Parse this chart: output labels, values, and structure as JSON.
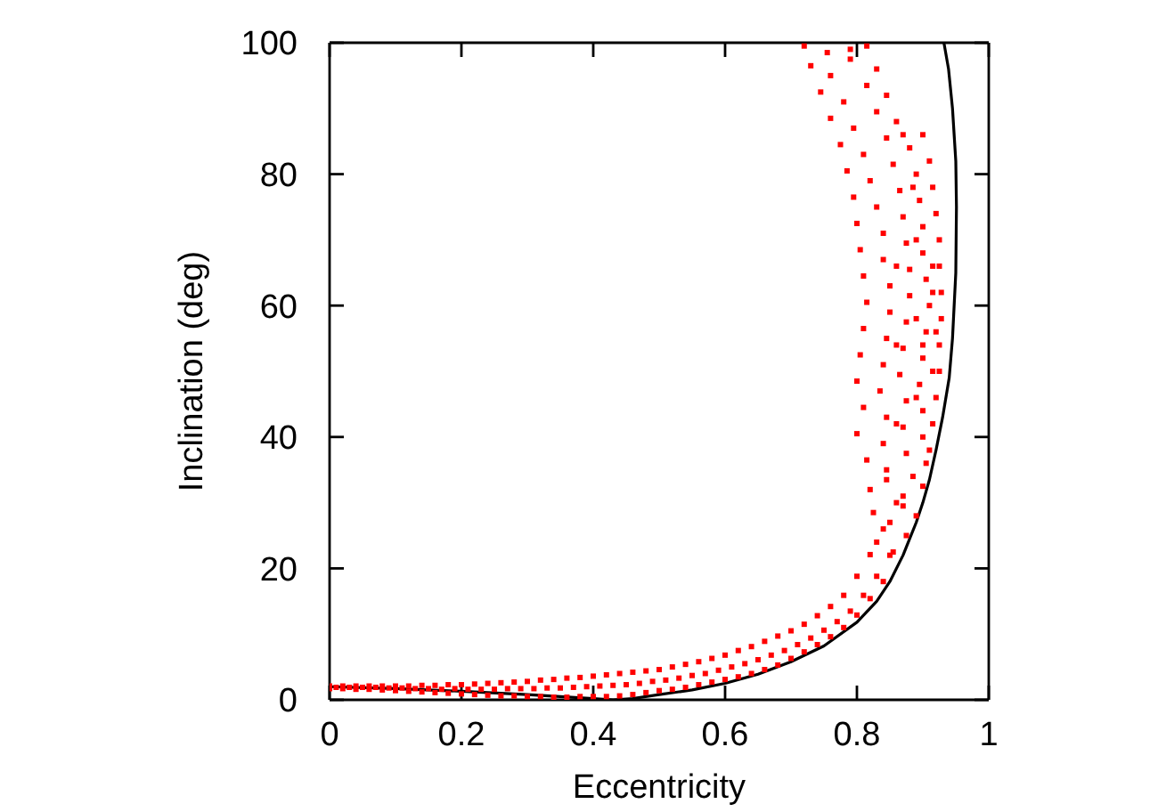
{
  "chart_data": {
    "type": "scatter",
    "xlabel": "Eccentricity",
    "ylabel": "Inclination (deg)",
    "xlim": [
      0,
      1
    ],
    "ylim": [
      0,
      100
    ],
    "xticks": [
      0,
      0.2,
      0.4,
      0.6,
      0.8,
      1
    ],
    "yticks": [
      0,
      20,
      40,
      60,
      80,
      100
    ],
    "marker": "square",
    "series": [
      {
        "color": "#ff0000",
        "x": [
          0,
          0.01,
          0,
          0.02,
          0.03,
          0.02,
          0.04,
          0.05,
          0.04,
          0.06,
          0.07,
          0.06,
          0.08,
          0.09,
          0.08,
          0.1,
          0.11,
          0.1,
          0.12,
          0.13,
          0.12,
          0.14,
          0.15,
          0.14,
          0.16,
          0.17,
          0.16,
          0.18,
          0.19,
          0.18,
          0.2,
          0.21,
          0.2,
          0.22,
          0.23,
          0.22,
          0.24,
          0.25,
          0.24,
          0.26,
          0.27,
          0.26,
          0.28,
          0.29,
          0.28,
          0.3,
          0.31,
          0.3,
          0.32,
          0.33,
          0.32,
          0.34,
          0.35,
          0.34,
          0.36,
          0.37,
          0.36,
          0.38,
          0.39,
          0.38,
          0.4,
          0.41,
          0.4,
          0.42,
          0.43,
          0.42,
          0.44,
          0.45,
          0.44,
          0.46,
          0.47,
          0.46,
          0.48,
          0.49,
          0.48,
          0.5,
          0.51,
          0.5,
          0.52,
          0.53,
          0.52,
          0.54,
          0.55,
          0.54,
          0.56,
          0.57,
          0.56,
          0.58,
          0.59,
          0.58,
          0.6,
          0.61,
          0.6,
          0.62,
          0.63,
          0.62,
          0.64,
          0.65,
          0.64,
          0.66,
          0.67,
          0.66,
          0.68,
          0.69,
          0.68,
          0.7,
          0.71,
          0.7,
          0.72,
          0.73,
          0.72,
          0.74,
          0.75,
          0.74,
          0.76,
          0.77,
          0.76,
          0.78,
          0.79,
          0.78,
          0.8,
          0.81,
          0.8,
          0.82,
          0.83,
          0.82,
          0.84,
          0.85,
          0.84,
          0.83,
          0.855,
          0.875,
          0.825,
          0.85,
          0.87,
          0.89,
          0.82,
          0.845,
          0.87,
          0.9,
          0.815,
          0.845,
          0.875,
          0.905,
          0.8,
          0.84,
          0.87,
          0.9,
          0.915,
          0.81,
          0.845,
          0.875,
          0.9,
          0.92,
          0.8,
          0.835,
          0.865,
          0.895,
          0.925,
          0.805,
          0.84,
          0.87,
          0.9,
          0.925,
          0.81,
          0.845,
          0.875,
          0.905,
          0.928,
          0.815,
          0.85,
          0.88,
          0.91,
          0.928,
          0.81,
          0.85,
          0.88,
          0.905,
          0.925,
          0.805,
          0.84,
          0.875,
          0.9,
          0.925,
          0.8,
          0.84,
          0.87,
          0.9,
          0.92,
          0.795,
          0.83,
          0.865,
          0.895,
          0.915,
          0.785,
          0.82,
          0.855,
          0.89,
          0.91,
          0.775,
          0.81,
          0.845,
          0.88,
          0.9,
          0.76,
          0.795,
          0.83,
          0.86,
          0.745,
          0.78,
          0.815,
          0.845,
          0.73,
          0.76,
          0.79,
          0.83,
          0.72,
          0.755,
          0.79,
          0.815,
          0.86,
          0.885,
          0.91,
          0.86,
          0.89,
          0.915,
          0.86,
          0.89,
          0.915,
          0.86,
          0.89,
          0.915,
          0.885,
          0.87,
          0.9,
          0.92
        ],
        "values": [
          1.7,
          1.9,
          2.1,
          1.7,
          1.9,
          2.1,
          1.6,
          1.9,
          2.1,
          1.6,
          1.9,
          2.1,
          1.5,
          1.8,
          2.1,
          1.4,
          1.8,
          2.1,
          1.3,
          1.7,
          2.1,
          1.2,
          1.7,
          2.2,
          1.1,
          1.6,
          2.2,
          1.0,
          1.7,
          2.3,
          0.9,
          1.6,
          2.3,
          0.8,
          1.6,
          2.4,
          0.7,
          1.6,
          2.5,
          0.6,
          1.7,
          2.6,
          0.6,
          1.7,
          2.7,
          0.5,
          1.7,
          2.8,
          0.5,
          1.8,
          3.0,
          0.4,
          1.8,
          3.1,
          0.4,
          1.9,
          3.3,
          0.5,
          2.0,
          3.4,
          0.5,
          2.1,
          3.6,
          0.5,
          2.2,
          3.8,
          0.6,
          2.3,
          4.0,
          0.8,
          2.5,
          4.2,
          1.1,
          2.8,
          4.4,
          1.4,
          3.0,
          4.6,
          1.6,
          3.3,
          5.0,
          1.9,
          3.7,
          5.4,
          2.3,
          4.0,
          5.8,
          2.7,
          4.5,
          6.3,
          3.1,
          5.0,
          6.8,
          3.5,
          5.5,
          7.5,
          4.0,
          6.1,
          8.1,
          4.6,
          6.8,
          8.9,
          5.3,
          7.5,
          9.7,
          6.3,
          8.4,
          10.5,
          7.3,
          9.4,
          11.5,
          8.4,
          10.6,
          12.8,
          9.6,
          11.9,
          14.2,
          11.0,
          13.5,
          15.9,
          12.9,
          15.9,
          18.8,
          15.4,
          18.8,
          22.1,
          18.0,
          22.0,
          26.0,
          24,
          22.5,
          25,
          28.5,
          27,
          29.5,
          28,
          32,
          33.5,
          31,
          32.5,
          36.5,
          35,
          37.5,
          36,
          40.5,
          39,
          41.5,
          40,
          42,
          44.5,
          43,
          45.5,
          44,
          46,
          48.5,
          47,
          49.5,
          48,
          50,
          52.5,
          51,
          53.5,
          52,
          54,
          56.5,
          55,
          57.5,
          56,
          58,
          60.5,
          59,
          61.5,
          60,
          62,
          64.5,
          63,
          65.5,
          64,
          66,
          68.5,
          67,
          69.5,
          68,
          70,
          72.5,
          71,
          73.5,
          72,
          74,
          76.5,
          75,
          77.5,
          76,
          78,
          80.5,
          79,
          81.5,
          80,
          82,
          84.5,
          83,
          85.5,
          84,
          86,
          88.5,
          87,
          89.5,
          88,
          92.5,
          91,
          93.5,
          92,
          96.5,
          95,
          97.5,
          96,
          99.5,
          98.5,
          99,
          99.5,
          30,
          34,
          38,
          42,
          46,
          50,
          54,
          58,
          62,
          66,
          70,
          66,
          78,
          86,
          54,
          56
        ]
      },
      {
        "type": "line",
        "color": "#000000",
        "marker": "none",
        "x": [
          0,
          0.1,
          0.2,
          0.3,
          0.35,
          0.4,
          0.43,
          0.46,
          0.5,
          0.55,
          0.6,
          0.65,
          0.7,
          0.75,
          0.8,
          0.83,
          0.85,
          0.87,
          0.89,
          0.9,
          0.91,
          0.92,
          0.93,
          0.94,
          0.945,
          0.95,
          0.951,
          0.95,
          0.945,
          0.939,
          0.932
        ],
        "values": [
          2.0,
          1.7,
          1.3,
          0.8,
          0.5,
          0.2,
          0,
          0.2,
          0.8,
          1.5,
          2.5,
          3.9,
          5.8,
          8.2,
          11.8,
          15,
          18,
          22,
          27,
          30,
          33.5,
          38,
          43,
          49,
          55,
          65,
          75,
          82,
          90,
          96,
          100
        ]
      }
    ]
  }
}
